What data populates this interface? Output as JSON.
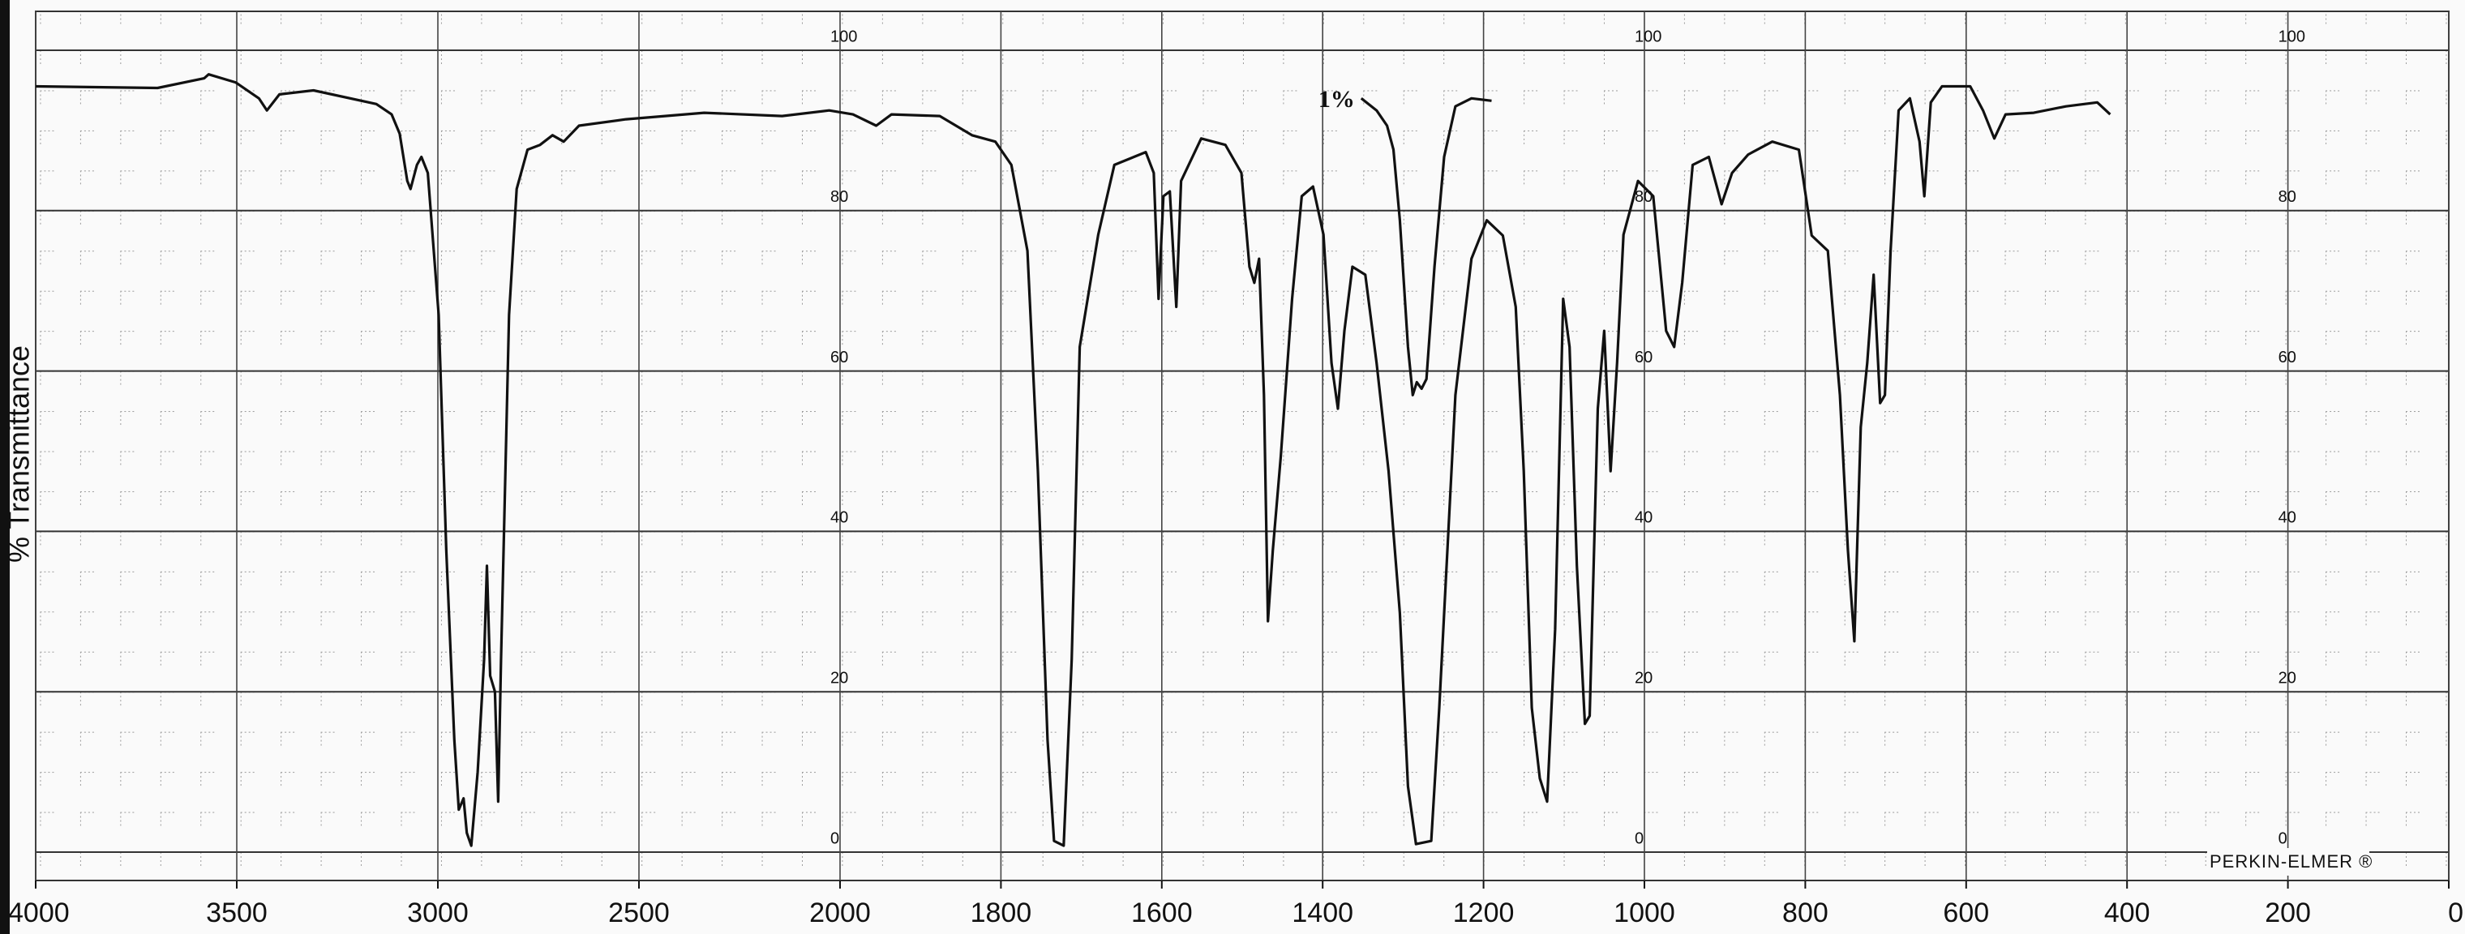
{
  "chart_data": {
    "type": "line",
    "y_label": "% Transmittance",
    "brand": "PERKIN-ELMER ®",
    "xlim": [
      4000,
      0
    ],
    "x_scale_break": 2000,
    "x_scale_factor": 2,
    "xticks": [
      4000,
      3500,
      3000,
      2500,
      2000,
      1800,
      1600,
      1400,
      1200,
      1000,
      800,
      600,
      400,
      200,
      0
    ],
    "ylim": [
      0,
      100
    ],
    "yticks": [
      0,
      20,
      40,
      60,
      80,
      100
    ],
    "grid": true,
    "series": [
      {
        "color": "#111111",
        "x": [
          4000,
          3697,
          3581,
          3570,
          3503,
          3445,
          3425,
          3394,
          3309,
          3153,
          3115,
          3095,
          3076,
          3068,
          3052,
          3041,
          3025,
          2998,
          2979,
          2959,
          2948,
          2936,
          2928,
          2917,
          2901,
          2885,
          2878,
          2870,
          2858,
          2850,
          2843,
          2823,
          2804,
          2777,
          2746,
          2715,
          2687,
          2649,
          2532,
          2338,
          2144,
          2027,
          1984,
          1955,
          1936,
          1876,
          1836,
          1807,
          1787,
          1767,
          1754,
          1742,
          1734,
          1722,
          1712,
          1702,
          1679,
          1659,
          1620,
          1610,
          1604,
          1598,
          1590,
          1582,
          1576,
          1551,
          1521,
          1501,
          1491,
          1485,
          1479,
          1473,
          1468,
          1462,
          1452,
          1438,
          1426,
          1412,
          1399,
          1389,
          1381,
          1373,
          1363,
          1347,
          1333,
          1318,
          1304,
          1294,
          1284,
          1265,
          1255,
          1235,
          1215,
          1196,
          1176,
          1160,
          1150,
          1140,
          1130,
          1121,
          1111,
          1101,
          1093,
          1084,
          1074,
          1068,
          1058,
          1050,
          1042,
          1034,
          1026,
          1008,
          989,
          973,
          963,
          953,
          940,
          920,
          904,
          891,
          871,
          841,
          808,
          792,
          772,
          757,
          747,
          739,
          731,
          723,
          715,
          707,
          701,
          694,
          684,
          670,
          658,
          652,
          644,
          630,
          595,
          579,
          565,
          551,
          516,
          476,
          437,
          421
        ],
        "values": [
          95.5,
          95.3,
          96.5,
          97,
          96,
          94,
          92.5,
          94.5,
          95,
          93.3,
          92,
          89.6,
          83.7,
          82.7,
          85.7,
          86.7,
          84.7,
          67,
          37.6,
          14,
          5.3,
          6.7,
          2.4,
          0.8,
          10,
          24,
          35.7,
          22,
          20,
          6.3,
          24,
          67,
          82.7,
          87.6,
          88.2,
          89.4,
          88.6,
          90.6,
          91.4,
          92.2,
          91.8,
          92.5,
          92,
          90.6,
          92,
          91.8,
          89.4,
          88.6,
          85.7,
          75,
          47.5,
          14,
          1.4,
          0.8,
          24,
          63,
          77,
          85.7,
          87.3,
          84.7,
          69,
          81.8,
          82.4,
          68,
          83.7,
          89,
          88.2,
          84.7,
          73,
          71,
          74,
          57,
          28.8,
          37.6,
          49.4,
          69,
          81.8,
          83,
          77,
          61,
          55.3,
          65,
          73,
          72,
          61,
          47.5,
          29.8,
          8.2,
          1,
          1.4,
          18,
          57,
          74,
          78.8,
          76.9,
          68,
          47.5,
          18,
          9.2,
          6.3,
          27.8,
          69,
          63,
          35.7,
          16,
          17,
          55.3,
          65,
          47.5,
          61,
          77,
          83.7,
          81.8,
          65,
          63,
          71,
          85.7,
          86.7,
          80.8,
          84.7,
          87,
          88.6,
          87.6,
          76.9,
          75,
          57,
          37.6,
          26.3,
          53,
          61,
          72,
          56,
          57,
          75,
          92.5,
          94,
          88.6,
          81.8,
          93.5,
          95.5,
          95.5,
          92.5,
          89,
          92,
          92.2,
          93,
          93.5,
          92
        ]
      },
      {
        "name": "1%",
        "color": "#111111",
        "x": [
          1352,
          1333,
          1320,
          1312,
          1304,
          1294,
          1288,
          1283,
          1277,
          1271,
          1261,
          1249,
          1235,
          1215,
          1190
        ],
        "values": [
          94,
          92.5,
          90.6,
          87.6,
          78.8,
          63,
          57,
          58.6,
          57.8,
          59,
          73,
          86.7,
          93,
          94,
          93.7
        ]
      }
    ]
  }
}
